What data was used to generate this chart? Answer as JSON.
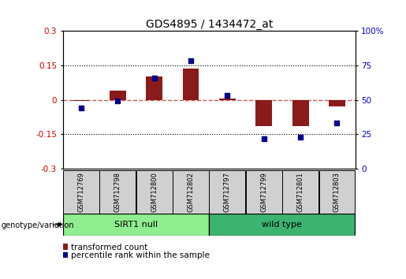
{
  "title": "GDS4895 / 1434472_at",
  "samples": [
    "GSM712769",
    "GSM712798",
    "GSM712800",
    "GSM712802",
    "GSM712797",
    "GSM712799",
    "GSM712801",
    "GSM712803"
  ],
  "transformed_count": [
    -0.005,
    0.04,
    0.1,
    0.135,
    0.005,
    -0.115,
    -0.115,
    -0.03
  ],
  "percentile_rank": [
    44,
    49,
    66,
    78,
    53,
    22,
    23,
    33
  ],
  "groups": [
    {
      "label": "SIRT1 null",
      "start": 0,
      "end": 4,
      "color": "#90EE90"
    },
    {
      "label": "wild type",
      "start": 4,
      "end": 8,
      "color": "#3CB371"
    }
  ],
  "ylim_left": [
    -0.3,
    0.3
  ],
  "ylim_right": [
    0,
    100
  ],
  "yticks_left": [
    -0.3,
    -0.15,
    0,
    0.15,
    0.3
  ],
  "yticks_right": [
    0,
    25,
    50,
    75,
    100
  ],
  "bar_color": "#8B1A1A",
  "dot_color": "#00008B",
  "zero_line_color": "#CD5C5C",
  "bg_color": "white",
  "legend_bar_label": "transformed count",
  "legend_dot_label": "percentile rank within the sample",
  "genotype_label": "genotype/variation",
  "title_fontsize": 10,
  "tick_fontsize": 7.5,
  "sample_fontsize": 6,
  "group_fontsize": 8,
  "legend_fontsize": 7.5
}
